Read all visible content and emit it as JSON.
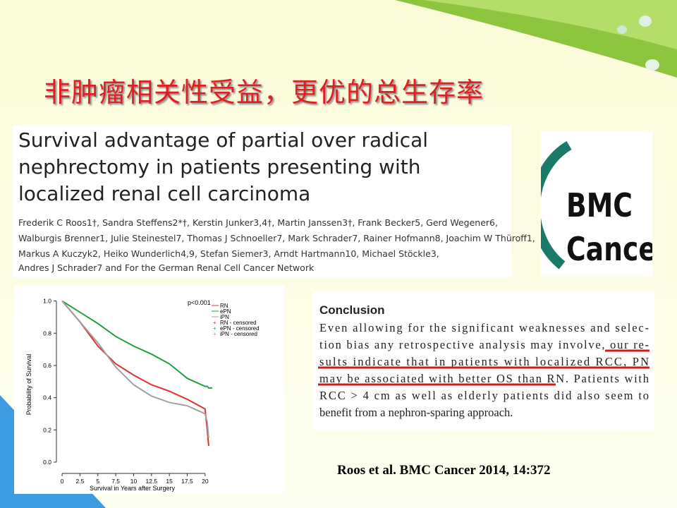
{
  "slide": {
    "title": "非肿瘤相关性受益，更优的总生存率",
    "citation": "Roos et al. BMC Cancer 2014, 14:372"
  },
  "article": {
    "title_lines": [
      "Survival advantage of partial over radical",
      "nephrectomy in patients presenting with",
      "localized renal cell carcinoma"
    ],
    "author_lines": [
      "Frederik C Roos1†, Sandra Steffens2*†, Kerstin Junker3,4†, Martin Janssen3†, Frank Becker5, Gerd Wegener6,",
      "Walburgis Brenner1, Julie Steinestel7, Thomas J Schnoeller7, Mark Schrader7, Rainer Hofmann8, Joachim W Thüroff1,",
      "Markus A Kuczyk2, Heiko Wunderlich4,9, Stefan Siemer3, Arndt Hartmann10, Michael Stöckle3,",
      "Andres J Schrader7 and For the German Renal Cell Cancer Network"
    ]
  },
  "logo": {
    "lines": [
      "BMC",
      "Cancer"
    ]
  },
  "conclusion": {
    "heading": "Conclusion",
    "lines": [
      "Even allowing for the significant weaknesses and selec-",
      "tion bias any retrospective analysis may involve, our re-",
      "sults indicate that in patients with localized RCC, PN",
      "may be associated with better OS than RN. Patients with",
      "RCC > 4 cm as well as elderly patients did also seem to",
      "benefit from a nephron-sparing approach."
    ]
  },
  "chart_data": {
    "type": "line",
    "x_label": "Survival in Years after Surgery",
    "y_label": "Probability of Survival",
    "annotation": "p<0.001",
    "x": [
      0,
      2.5,
      5,
      7.5,
      10,
      12.5,
      15,
      17.5,
      20,
      20.3,
      20.5,
      21
    ],
    "series": [
      {
        "name": "RN",
        "color": "#e03030",
        "values": [
          1.0,
          0.87,
          0.72,
          0.61,
          0.54,
          0.48,
          0.44,
          0.39,
          0.33,
          0.2,
          0.1,
          null
        ]
      },
      {
        "name": "ePN",
        "color": "#20a040",
        "values": [
          1.0,
          0.93,
          0.86,
          0.78,
          0.72,
          0.67,
          0.61,
          0.52,
          0.47,
          0.47,
          0.46,
          0.46
        ]
      },
      {
        "name": "iPN",
        "color": "#a0a0a0",
        "values": [
          1.0,
          0.87,
          0.74,
          0.59,
          0.48,
          0.41,
          0.37,
          0.35,
          0.3,
          0.25,
          0.15,
          null
        ]
      }
    ],
    "censored_legend": [
      "RN - censored",
      "ePN - censored",
      "iPN - censored"
    ],
    "xlim": [
      -0.6,
      21.2
    ],
    "ylim": [
      -0.057,
      1.02
    ],
    "xticks": [
      0,
      2.5,
      5,
      7.5,
      10,
      12.5,
      15,
      17.5,
      20
    ],
    "yticks": [
      {
        "value": 1,
        "label": "1.0"
      },
      {
        "value": 0.8,
        "label": "0.8"
      },
      {
        "value": 0.6,
        "label": "0.6"
      },
      {
        "value": 0.4,
        "label": "0.4"
      },
      {
        "value": 0.2,
        "label": "0.2"
      },
      {
        "value": 0,
        "label": "0.0"
      }
    ]
  }
}
